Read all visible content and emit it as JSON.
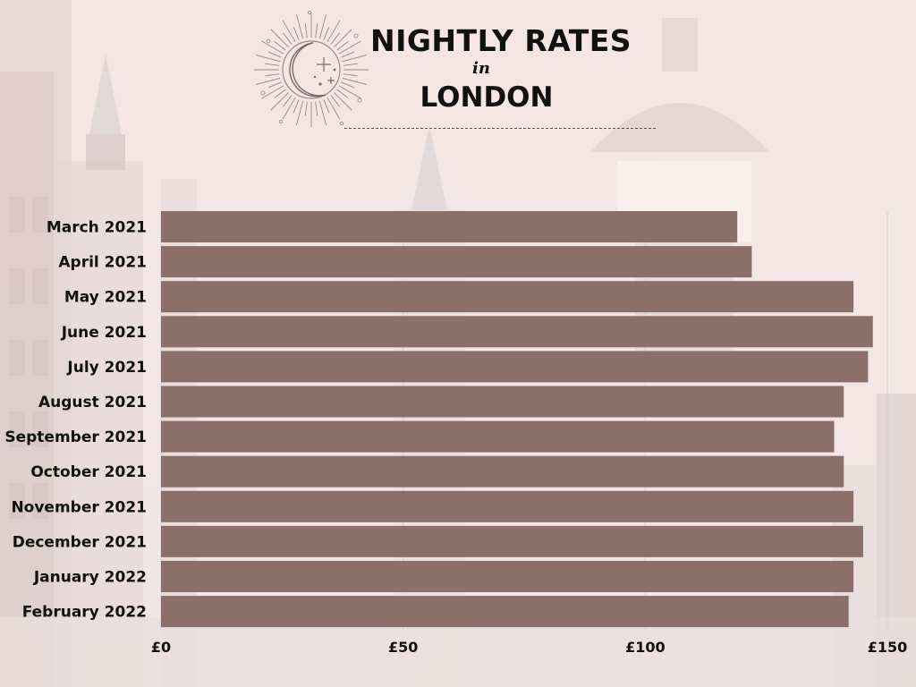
{
  "title": {
    "line1": "NIGHTLY RATES",
    "line2": "in",
    "line3": "LONDON"
  },
  "colors": {
    "bar": "#8a7068",
    "background": "#f3e6e3",
    "text": "#111111"
  },
  "icons": {
    "emblem": "crescent-moon-sunburst-icon"
  },
  "chart_data": {
    "type": "bar",
    "orientation": "horizontal",
    "title": "NIGHTLY RATES in LONDON",
    "categories": [
      "March 2021",
      "April 2021",
      "May 2021",
      "June 2021",
      "July 2021",
      "August 2021",
      "September 2021",
      "October 2021",
      "November 2021",
      "December 2021",
      "January 2022",
      "February 2022"
    ],
    "values": [
      119,
      122,
      143,
      147,
      146,
      141,
      139,
      141,
      143,
      145,
      143,
      142
    ],
    "xlim": [
      0,
      150
    ],
    "xticks": [
      0,
      50,
      100,
      150
    ],
    "xtick_labels": [
      "£0",
      "£50",
      "£100",
      "£150"
    ],
    "grid": true,
    "xlabel": "",
    "ylabel": ""
  }
}
